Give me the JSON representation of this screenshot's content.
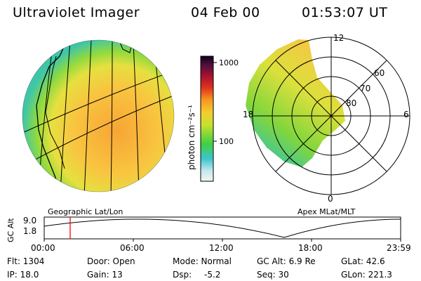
{
  "header": {
    "instrument": "Ultraviolet Imager",
    "date": "04 Feb 00",
    "time": "01:53:07 UT"
  },
  "colorbar": {
    "unit_label": "photon cm⁻²s⁻¹",
    "ticks": [
      "1000",
      "100"
    ],
    "ticks_values": [
      1000,
      100
    ]
  },
  "geo_panel": {
    "caption": "Geographic Lat/Lon"
  },
  "polar_panel": {
    "caption": "Apex MLat/MLT",
    "mlt_labels": [
      "12",
      "18",
      "6",
      "0"
    ],
    "lat_labels": [
      "60",
      "70",
      "80"
    ]
  },
  "timeline": {
    "axis_title": "GC Alt",
    "y_ticks": [
      "9.0",
      "1.8"
    ],
    "x_ticks": [
      "00:00",
      "06:00",
      "12:00",
      "18:00",
      "23:59"
    ],
    "current_marker_time": "01:53"
  },
  "info": {
    "flt": "Flt: 1304",
    "ip": "IP: 18.0",
    "door": "Door: Open",
    "gain": "Gain: 13",
    "mode": "Mode: Normal",
    "dsp_label": "Dsp:",
    "dsp_value": "-5.2",
    "gc_alt": "GC Alt: 6.9 Re",
    "seq": "Seq: 30",
    "glat": "GLat:  42.6",
    "glon": "GLon: 221.3"
  },
  "colors": {
    "marker": "#ff0000",
    "outline": "#000000",
    "fill_orange": "#f5b030",
    "fill_green": "#6ad640"
  }
}
